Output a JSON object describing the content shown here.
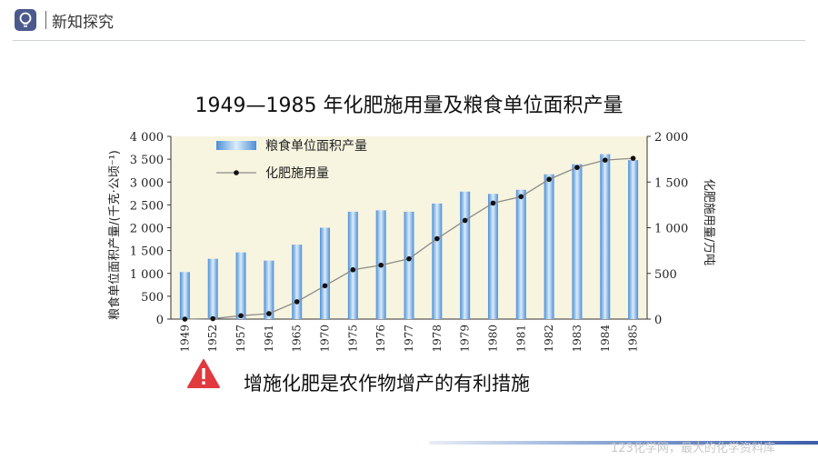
{
  "header": {
    "section_title": "新知探究"
  },
  "main_title": "1949—1985 年化肥施用量及粮食单位面积产量",
  "conclusion_text": "增施化肥是农作物增产的有利措施",
  "watermark": "123化学网，最大的化学资料库",
  "icons": {
    "header": "lightbulb-icon",
    "warning": "warning-triangle-icon"
  },
  "colors": {
    "plot_bg": "#f7f4df",
    "bar": "#7fb3e8",
    "bar_edge": "#4d8fd6",
    "line": "#8c8c8c",
    "marker": "#111111",
    "warning": "#e0393e",
    "header_icon_bg": "#4a5a8c"
  },
  "chart_data": {
    "type": "bar",
    "categories": [
      "1949",
      "1952",
      "1957",
      "1961",
      "1965",
      "1970",
      "1975",
      "1976",
      "1977",
      "1978",
      "1979",
      "1980",
      "1981",
      "1982",
      "1983",
      "1984",
      "1985"
    ],
    "series": [
      {
        "name": "粮食单位面积产量",
        "type": "bar",
        "axis": "left",
        "values": [
          1030,
          1320,
          1460,
          1280,
          1630,
          2000,
          2350,
          2380,
          2350,
          2530,
          2790,
          2740,
          2830,
          3170,
          3390,
          3610,
          3480
        ]
      },
      {
        "name": "化肥施用量",
        "type": "line",
        "axis": "right",
        "values": [
          0,
          5,
          37,
          60,
          190,
          365,
          540,
          590,
          660,
          880,
          1080,
          1270,
          1340,
          1530,
          1660,
          1740,
          1760
        ]
      }
    ],
    "ylabel": "粮食单位面积产量/(千克·公顷⁻¹)",
    "y2label": "化肥施用量/万吨",
    "ylim": [
      0,
      4000
    ],
    "y2lim": [
      0,
      2000
    ],
    "yticks": [
      "0",
      "500",
      "1 000",
      "1 500",
      "2 000",
      "2 500",
      "3 000",
      "3 500",
      "4 000"
    ],
    "y2ticks": [
      "0",
      "500",
      "1 000",
      "1 500",
      "2 000"
    ],
    "legend_position": "top-left",
    "grid": false
  }
}
